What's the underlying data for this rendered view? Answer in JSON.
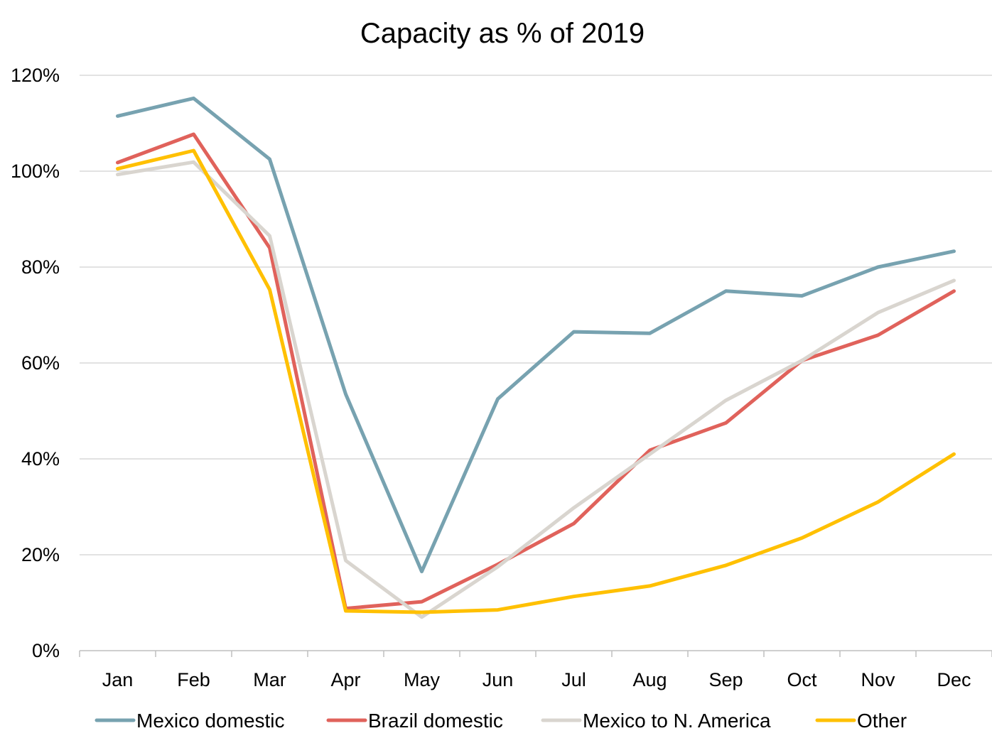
{
  "chart_data": {
    "type": "line",
    "title": "Capacity as % of 2019",
    "xlabel": "",
    "ylabel": "",
    "categories": [
      "Jan",
      "Feb",
      "Mar",
      "Apr",
      "May",
      "Jun",
      "Jul",
      "Aug",
      "Sep",
      "Oct",
      "Nov",
      "Dec"
    ],
    "ylim": [
      0,
      120
    ],
    "yticks": [
      "0%",
      "20%",
      "40%",
      "60%",
      "80%",
      "100%",
      "120%"
    ],
    "ytick_values": [
      0,
      20,
      40,
      60,
      80,
      100,
      120
    ],
    "grid": true,
    "legend_position": "bottom",
    "series": [
      {
        "name": "Mexico domestic",
        "color": "#77a2b0",
        "values": [
          111.5,
          115.2,
          102.5,
          53.5,
          16.5,
          52.5,
          66.5,
          66.2,
          75.0,
          74.0,
          80.0,
          83.3
        ]
      },
      {
        "name": "Brazil domestic",
        "color": "#e0625b",
        "values": [
          101.8,
          107.7,
          84.0,
          8.8,
          10.2,
          18.0,
          26.5,
          41.8,
          47.5,
          60.5,
          65.8,
          75.0
        ]
      },
      {
        "name": "Mexico to N. America",
        "color": "#d9d5cf",
        "values": [
          99.3,
          101.9,
          86.5,
          18.8,
          7.0,
          17.5,
          29.8,
          41.0,
          52.2,
          60.5,
          70.5,
          77.2
        ]
      },
      {
        "name": "Other",
        "color": "#ffc000",
        "values": [
          100.5,
          104.3,
          75.3,
          8.3,
          8.0,
          8.5,
          11.3,
          13.5,
          17.8,
          23.5,
          31.0,
          41.0
        ]
      }
    ]
  }
}
